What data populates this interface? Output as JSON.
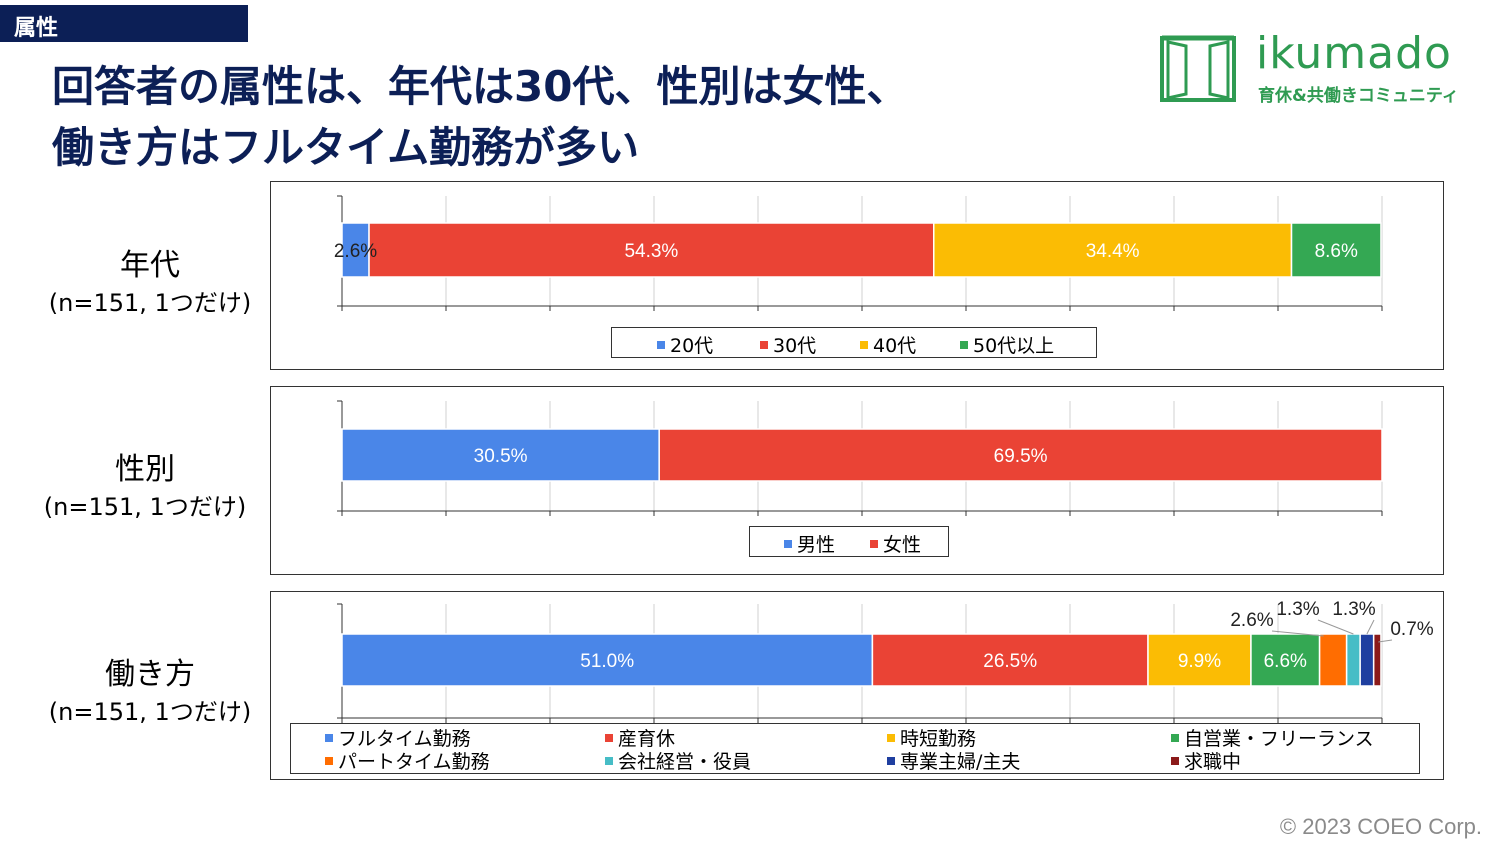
{
  "section_tag": "属性",
  "headline": {
    "line1": "回答者の属性は、年代は30代、性別は女性、",
    "line2": "働き方はフルタイム勤務が多い"
  },
  "logo": {
    "brand": "ikumado",
    "tagline": "育休&共働きコミュニティ",
    "icon": "window-icon",
    "color": "#2f9b52"
  },
  "copyright": "© 2023 COEO Corp.",
  "chart_data": [
    {
      "type": "bar",
      "orientation": "horizontal-stacked-100",
      "title": "年代",
      "subtitle": "(n=151, 1つだけ)",
      "xlim": [
        0,
        100
      ],
      "grid": true,
      "legend_position": "bottom",
      "series": [
        {
          "name": "20代",
          "value": 2.6,
          "label": "2.6%",
          "color": "#4a86e8"
        },
        {
          "name": "30代",
          "value": 54.3,
          "label": "54.3%",
          "color": "#ea4335"
        },
        {
          "name": "40代",
          "value": 34.4,
          "label": "34.4%",
          "color": "#fbbc04"
        },
        {
          "name": "50代以上",
          "value": 8.6,
          "label": "8.6%",
          "color": "#34a853"
        }
      ]
    },
    {
      "type": "bar",
      "orientation": "horizontal-stacked-100",
      "title": "性別",
      "subtitle": "(n=151, 1つだけ)",
      "xlim": [
        0,
        100
      ],
      "grid": true,
      "legend_position": "bottom",
      "series": [
        {
          "name": "男性",
          "value": 30.5,
          "label": "30.5%",
          "color": "#4a86e8"
        },
        {
          "name": "女性",
          "value": 69.5,
          "label": "69.5%",
          "color": "#ea4335"
        }
      ]
    },
    {
      "type": "bar",
      "orientation": "horizontal-stacked-100",
      "title": "働き方",
      "subtitle": "(n=151, 1つだけ)",
      "xlim": [
        0,
        100
      ],
      "grid": true,
      "legend_position": "bottom",
      "series": [
        {
          "name": "フルタイム勤務",
          "value": 51.0,
          "label": "51.0%",
          "color": "#4a86e8"
        },
        {
          "name": "産育休",
          "value": 26.5,
          "label": "26.5%",
          "color": "#ea4335"
        },
        {
          "name": "時短勤務",
          "value": 9.9,
          "label": "9.9%",
          "color": "#fbbc04"
        },
        {
          "name": "自営業・フリーランス",
          "value": 6.6,
          "label": "6.6%",
          "color": "#34a853"
        },
        {
          "name": "パートタイム勤務",
          "value": 2.6,
          "label": "2.6%",
          "color": "#ff6d01"
        },
        {
          "name": "会社経営・役員",
          "value": 1.3,
          "label": "1.3%",
          "color": "#46bdc6"
        },
        {
          "name": "専業主婦/主夫",
          "value": 1.3,
          "label": "1.3%",
          "color": "#1f3fa0"
        },
        {
          "name": "求職中",
          "value": 0.7,
          "label": "0.7%",
          "color": "#8b1a1a"
        }
      ]
    }
  ]
}
